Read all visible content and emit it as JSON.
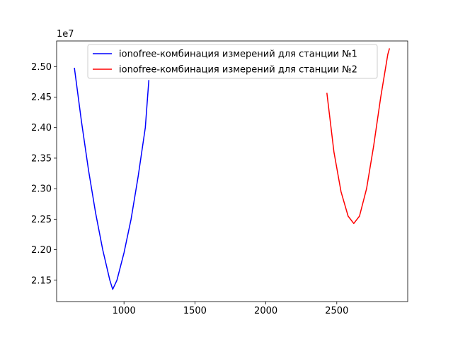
{
  "chart_data": {
    "type": "line",
    "title": "",
    "xlabel": "",
    "ylabel": "",
    "y_offset_label": "1e7",
    "xlim": [
      525,
      3000
    ],
    "ylim": [
      21.15,
      25.42
    ],
    "y_unit_scale": 10000000,
    "xticks": [
      1000,
      1500,
      2000,
      2500
    ],
    "xtick_labels": [
      "1000",
      "1500",
      "2000",
      "2500"
    ],
    "yticks": [
      21.5,
      22.0,
      22.5,
      23.0,
      23.5,
      24.0,
      24.5,
      25.0
    ],
    "ytick_labels": [
      "2.15",
      "2.20",
      "2.25",
      "2.30",
      "2.35",
      "2.40",
      "2.45",
      "2.50"
    ],
    "grid": false,
    "legend_position": "upper-center",
    "series": [
      {
        "name": "ionofree-комбинация измерений для станции №1",
        "color": "#0000ff",
        "x": [
          650,
          700,
          750,
          800,
          850,
          900,
          920,
          950,
          1000,
          1050,
          1100,
          1150,
          1175
        ],
        "y": [
          24.98,
          24.1,
          23.3,
          22.6,
          22.0,
          21.5,
          21.35,
          21.5,
          21.95,
          22.5,
          23.2,
          24.0,
          24.78
        ]
      },
      {
        "name": "ionofree-комбинация измерений для станции №2",
        "color": "#ff0000",
        "x": [
          2430,
          2480,
          2530,
          2580,
          2620,
          2660,
          2710,
          2760,
          2810,
          2860,
          2872
        ],
        "y": [
          24.57,
          23.6,
          22.95,
          22.55,
          22.43,
          22.55,
          23.0,
          23.7,
          24.5,
          25.2,
          25.3
        ]
      }
    ]
  }
}
